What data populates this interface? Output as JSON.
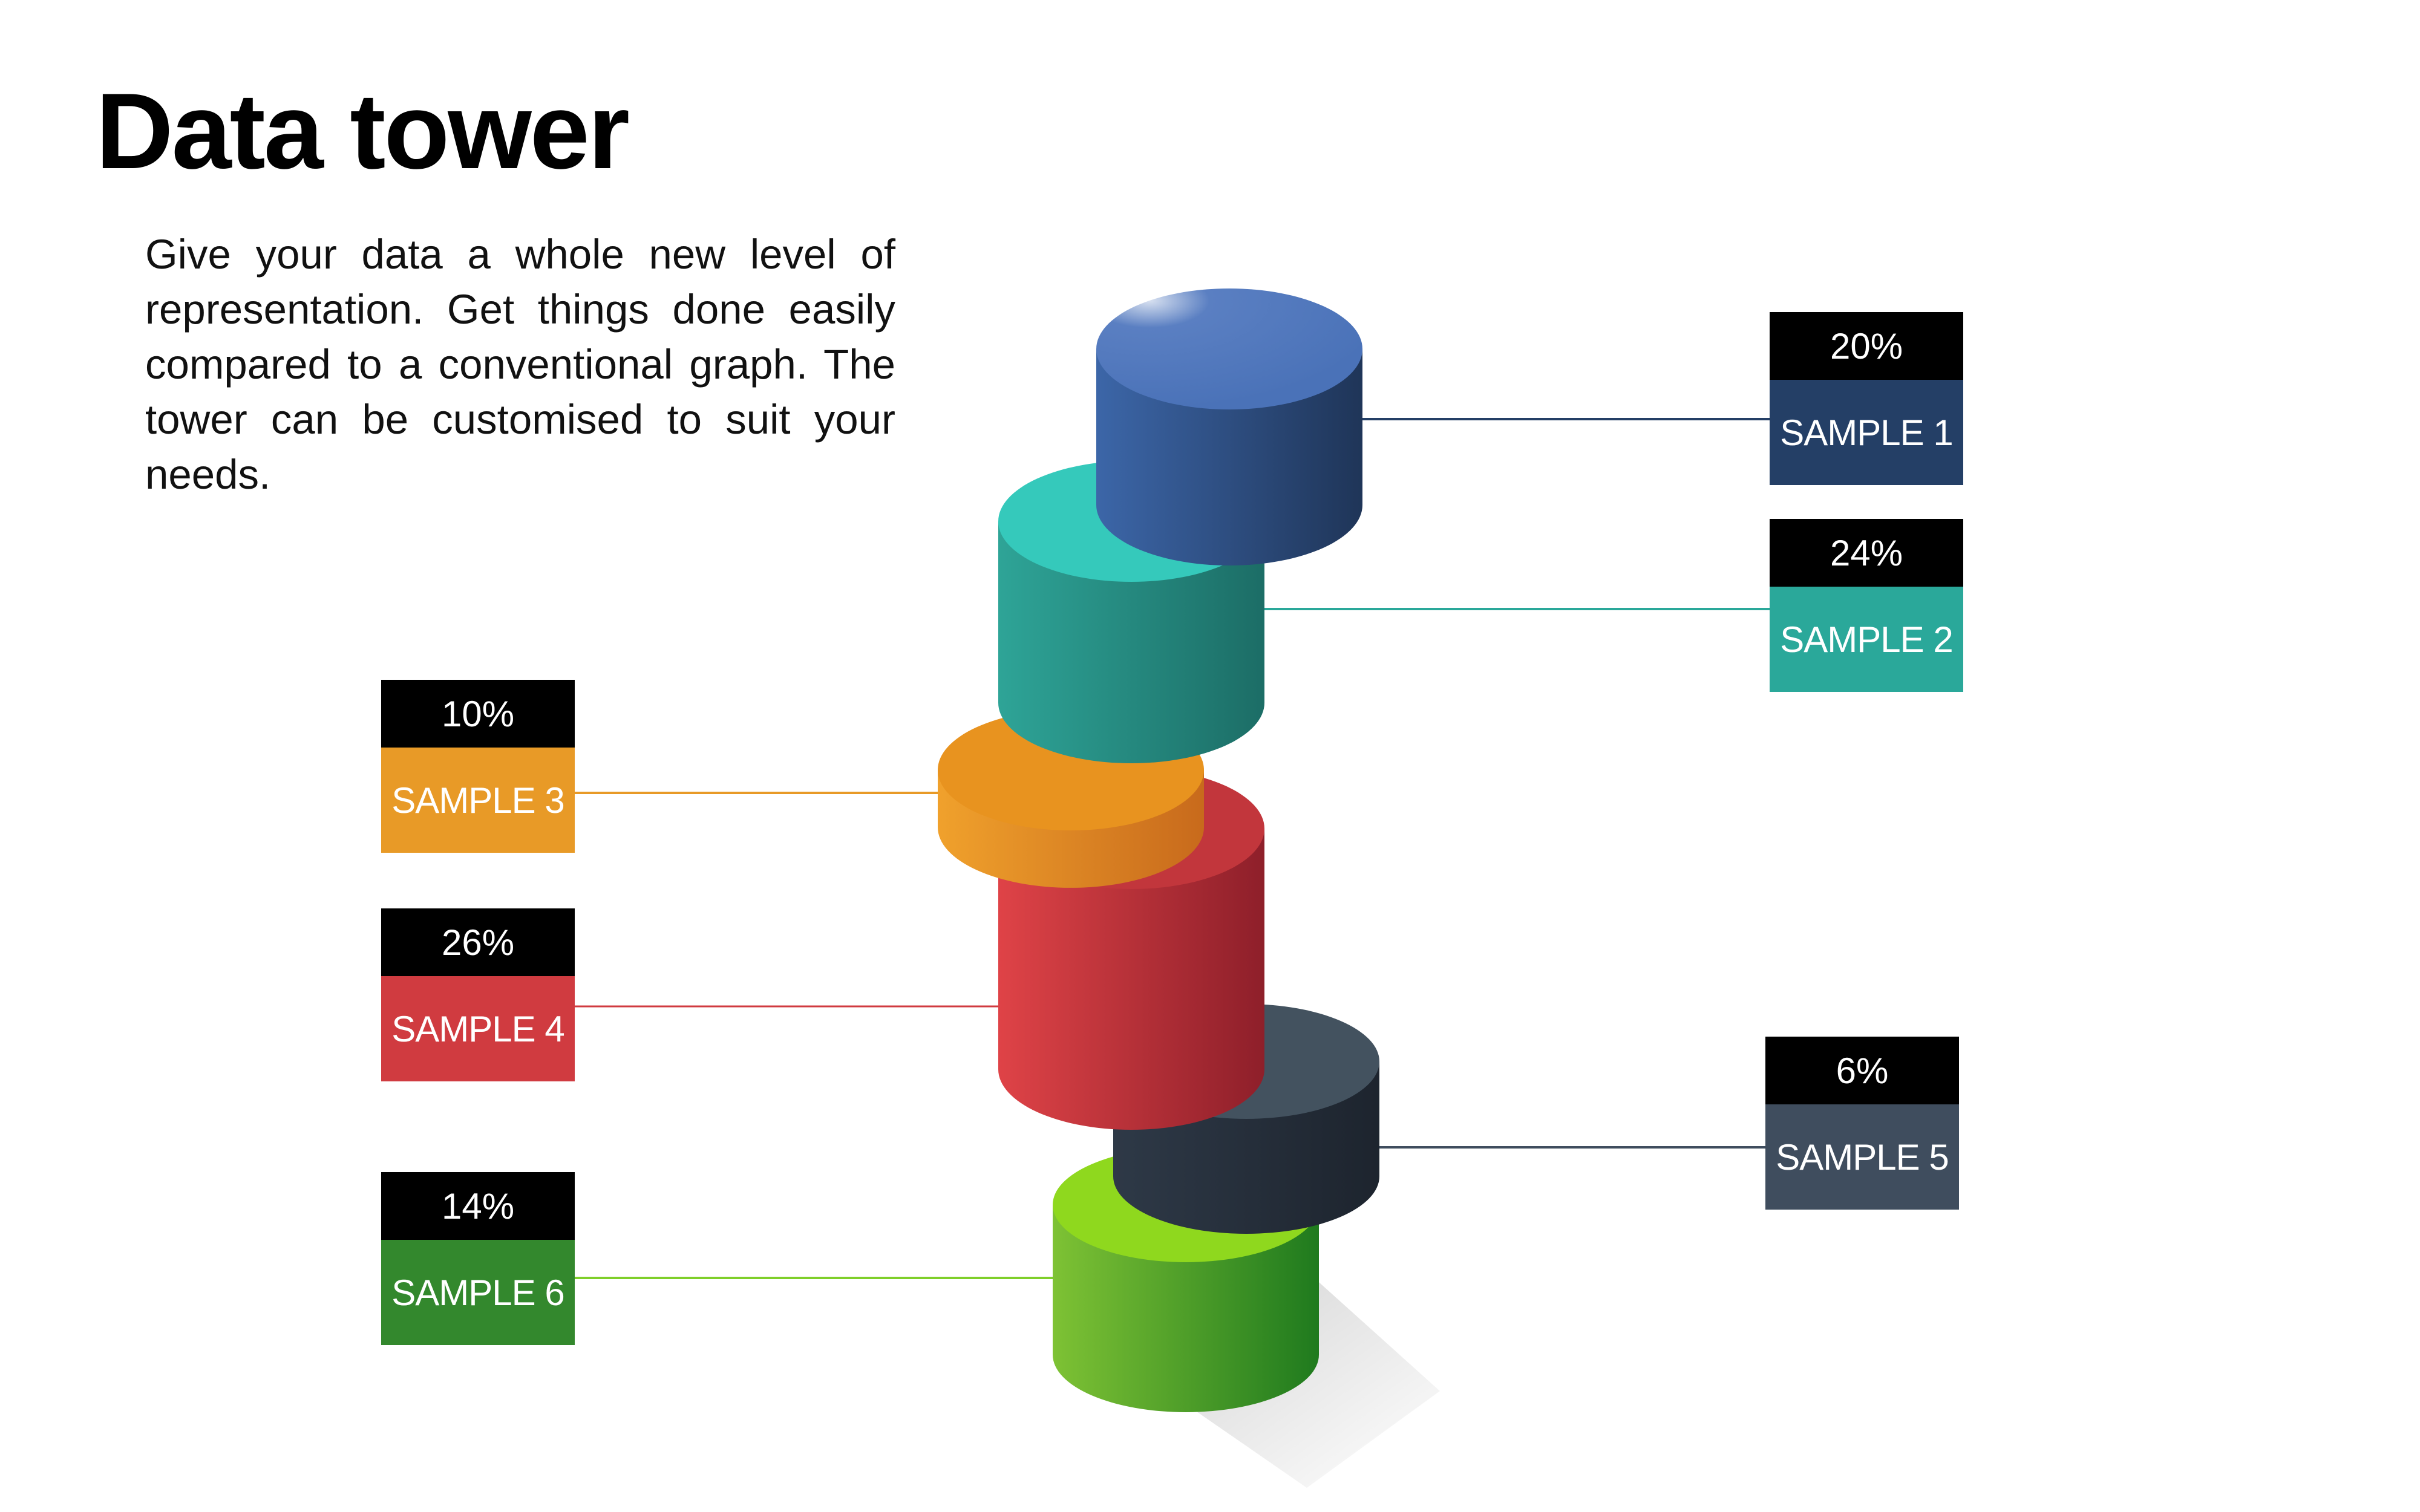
{
  "title": "Data tower",
  "description": "Give your data a whole new level of representation. Get things done easily compared to a conventional graph. The tower can be customised to suit your needs.",
  "colors": {
    "sample1": "#243f66",
    "sample2": "#2aa89a",
    "sample3": "#e89a27",
    "sample4": "#d03b40",
    "sample5": "#3f4d5e",
    "sample6": "#33882d"
  },
  "chart_data": {
    "type": "pie",
    "categories": [
      "SAMPLE 1",
      "SAMPLE 2",
      "SAMPLE 3",
      "SAMPLE 4",
      "SAMPLE 5",
      "SAMPLE 6"
    ],
    "values": [
      20,
      24,
      10,
      26,
      6,
      14
    ]
  },
  "labels": {
    "sample1": {
      "percent": "20%",
      "name": "SAMPLE 1"
    },
    "sample2": {
      "percent": "24%",
      "name": "SAMPLE 2"
    },
    "sample3": {
      "percent": "10%",
      "name": "SAMPLE 3"
    },
    "sample4": {
      "percent": "26%",
      "name": "SAMPLE 4"
    },
    "sample5": {
      "percent": "6%",
      "name": "SAMPLE 5"
    },
    "sample6": {
      "percent": "14%",
      "name": "SAMPLE 6"
    }
  }
}
